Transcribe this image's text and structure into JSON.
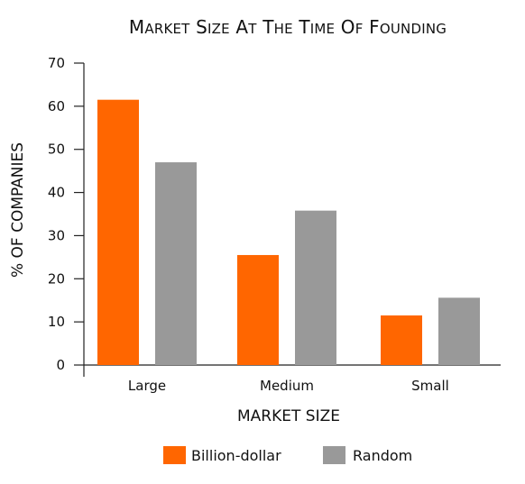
{
  "chart_data": {
    "type": "bar",
    "title": "Market Size at the Time of Founding",
    "xlabel": "MARKET SIZE",
    "ylabel": "% OF COMPANIES",
    "categories": [
      "Large",
      "Medium",
      "Small"
    ],
    "series": [
      {
        "name": "Billion-dollar",
        "values": [
          61.5,
          25.5,
          11.5
        ],
        "color": "#ff6600"
      },
      {
        "name": "Random",
        "values": [
          47,
          35.8,
          15.6
        ],
        "color": "#999999"
      }
    ],
    "ylim": [
      0,
      70
    ],
    "yticks": [
      0,
      10,
      20,
      30,
      40,
      50,
      60,
      70
    ],
    "grid": false,
    "legend_position": "bottom"
  }
}
